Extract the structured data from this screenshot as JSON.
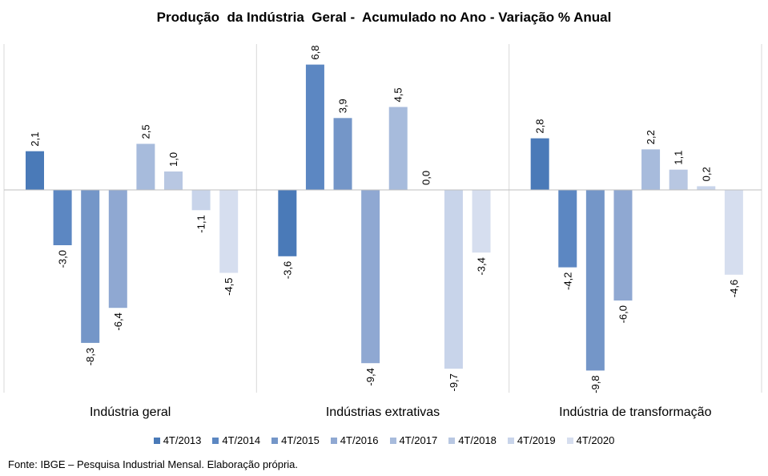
{
  "chart_data": {
    "type": "bar",
    "title": "Produção  da Indústria  Geral -  Acumulado no Ano - Variação % Anual",
    "categories": [
      "Indústria geral",
      "Indústrias extrativas",
      "Indústria de transformação"
    ],
    "series": [
      {
        "name": "4T/2013",
        "values": [
          2.1,
          -3.6,
          2.8
        ],
        "labels": [
          "2,1",
          "-3,6",
          "2,8"
        ]
      },
      {
        "name": "4T/2014",
        "values": [
          -3.0,
          6.8,
          -4.2
        ],
        "labels": [
          "-3,0",
          "6,8",
          "-4,2"
        ]
      },
      {
        "name": "4T/2015",
        "values": [
          -8.3,
          3.9,
          -9.8
        ],
        "labels": [
          "-8,3",
          "3,9",
          "-9,8"
        ]
      },
      {
        "name": "4T/2016",
        "values": [
          -6.4,
          -9.4,
          -6.0
        ],
        "labels": [
          "-6,4",
          "-9,4",
          "-6,0"
        ]
      },
      {
        "name": "4T/2017",
        "values": [
          2.5,
          4.5,
          2.2
        ],
        "labels": [
          "2,5",
          "4,5",
          "2,2"
        ]
      },
      {
        "name": "4T/2018",
        "values": [
          1.0,
          0.0,
          1.1
        ],
        "labels": [
          "1,0",
          "0,0",
          "1,1"
        ]
      },
      {
        "name": "4T/2019",
        "values": [
          -1.1,
          -9.7,
          0.2
        ],
        "labels": [
          "-1,1",
          "-9,7",
          "0,2"
        ]
      },
      {
        "name": "4T/2020",
        "values": [
          -4.5,
          -3.4,
          -4.6
        ],
        "labels": [
          "-4,5",
          "-3,4",
          "-4,6"
        ]
      }
    ],
    "colors": [
      "#4a7ab8",
      "#5c87c2",
      "#7496c8",
      "#8fa8d2",
      "#a7bbdc",
      "#b8c7e2",
      "#c8d4ea",
      "#d6deef"
    ],
    "xlabel": "",
    "ylabel": "",
    "ylim": [
      -10.8,
      8
    ],
    "grid": false,
    "legend_position": "bottom"
  },
  "source": "Fonte: IBGE – Pesquisa Industrial Mensal. Elaboração própria."
}
